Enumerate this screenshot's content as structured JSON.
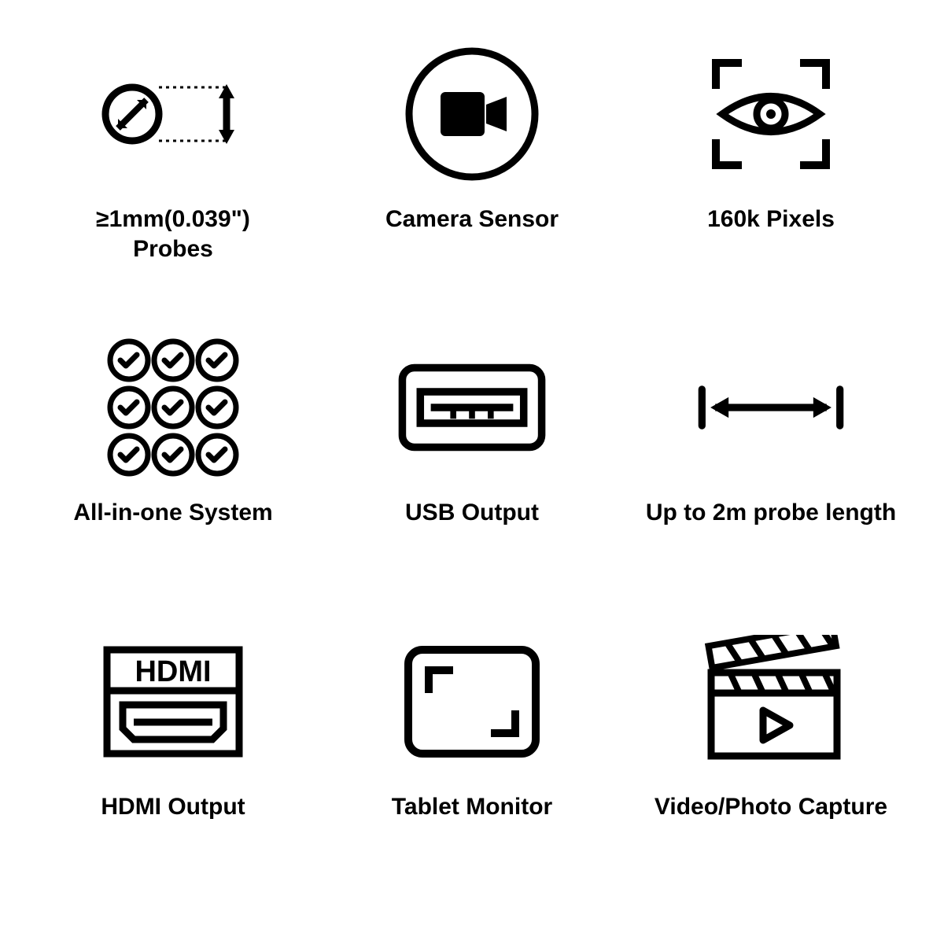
{
  "grid": {
    "columns": 3,
    "rows": 3,
    "background_color": "#ffffff",
    "icon_color": "#000000",
    "label_color": "#000000",
    "label_fontsize": 30,
    "label_fontweight": 700,
    "stroke_width": 8,
    "items": [
      {
        "icon": "probes-diameter-icon",
        "label": "≥1mm(0.039\")\nProbes"
      },
      {
        "icon": "camera-sensor-icon",
        "label": "Camera Sensor"
      },
      {
        "icon": "eye-pixels-icon",
        "label": "160k Pixels"
      },
      {
        "icon": "checkmark-grid-icon",
        "label": "All-in-one System"
      },
      {
        "icon": "usb-port-icon",
        "label": "USB Output"
      },
      {
        "icon": "length-arrow-icon",
        "label": "Up to 2m probe length"
      },
      {
        "icon": "hdmi-port-icon",
        "label": "HDMI Output"
      },
      {
        "icon": "tablet-monitor-icon",
        "label": "Tablet Monitor"
      },
      {
        "icon": "clapperboard-icon",
        "label": "Video/Photo Capture"
      }
    ]
  }
}
